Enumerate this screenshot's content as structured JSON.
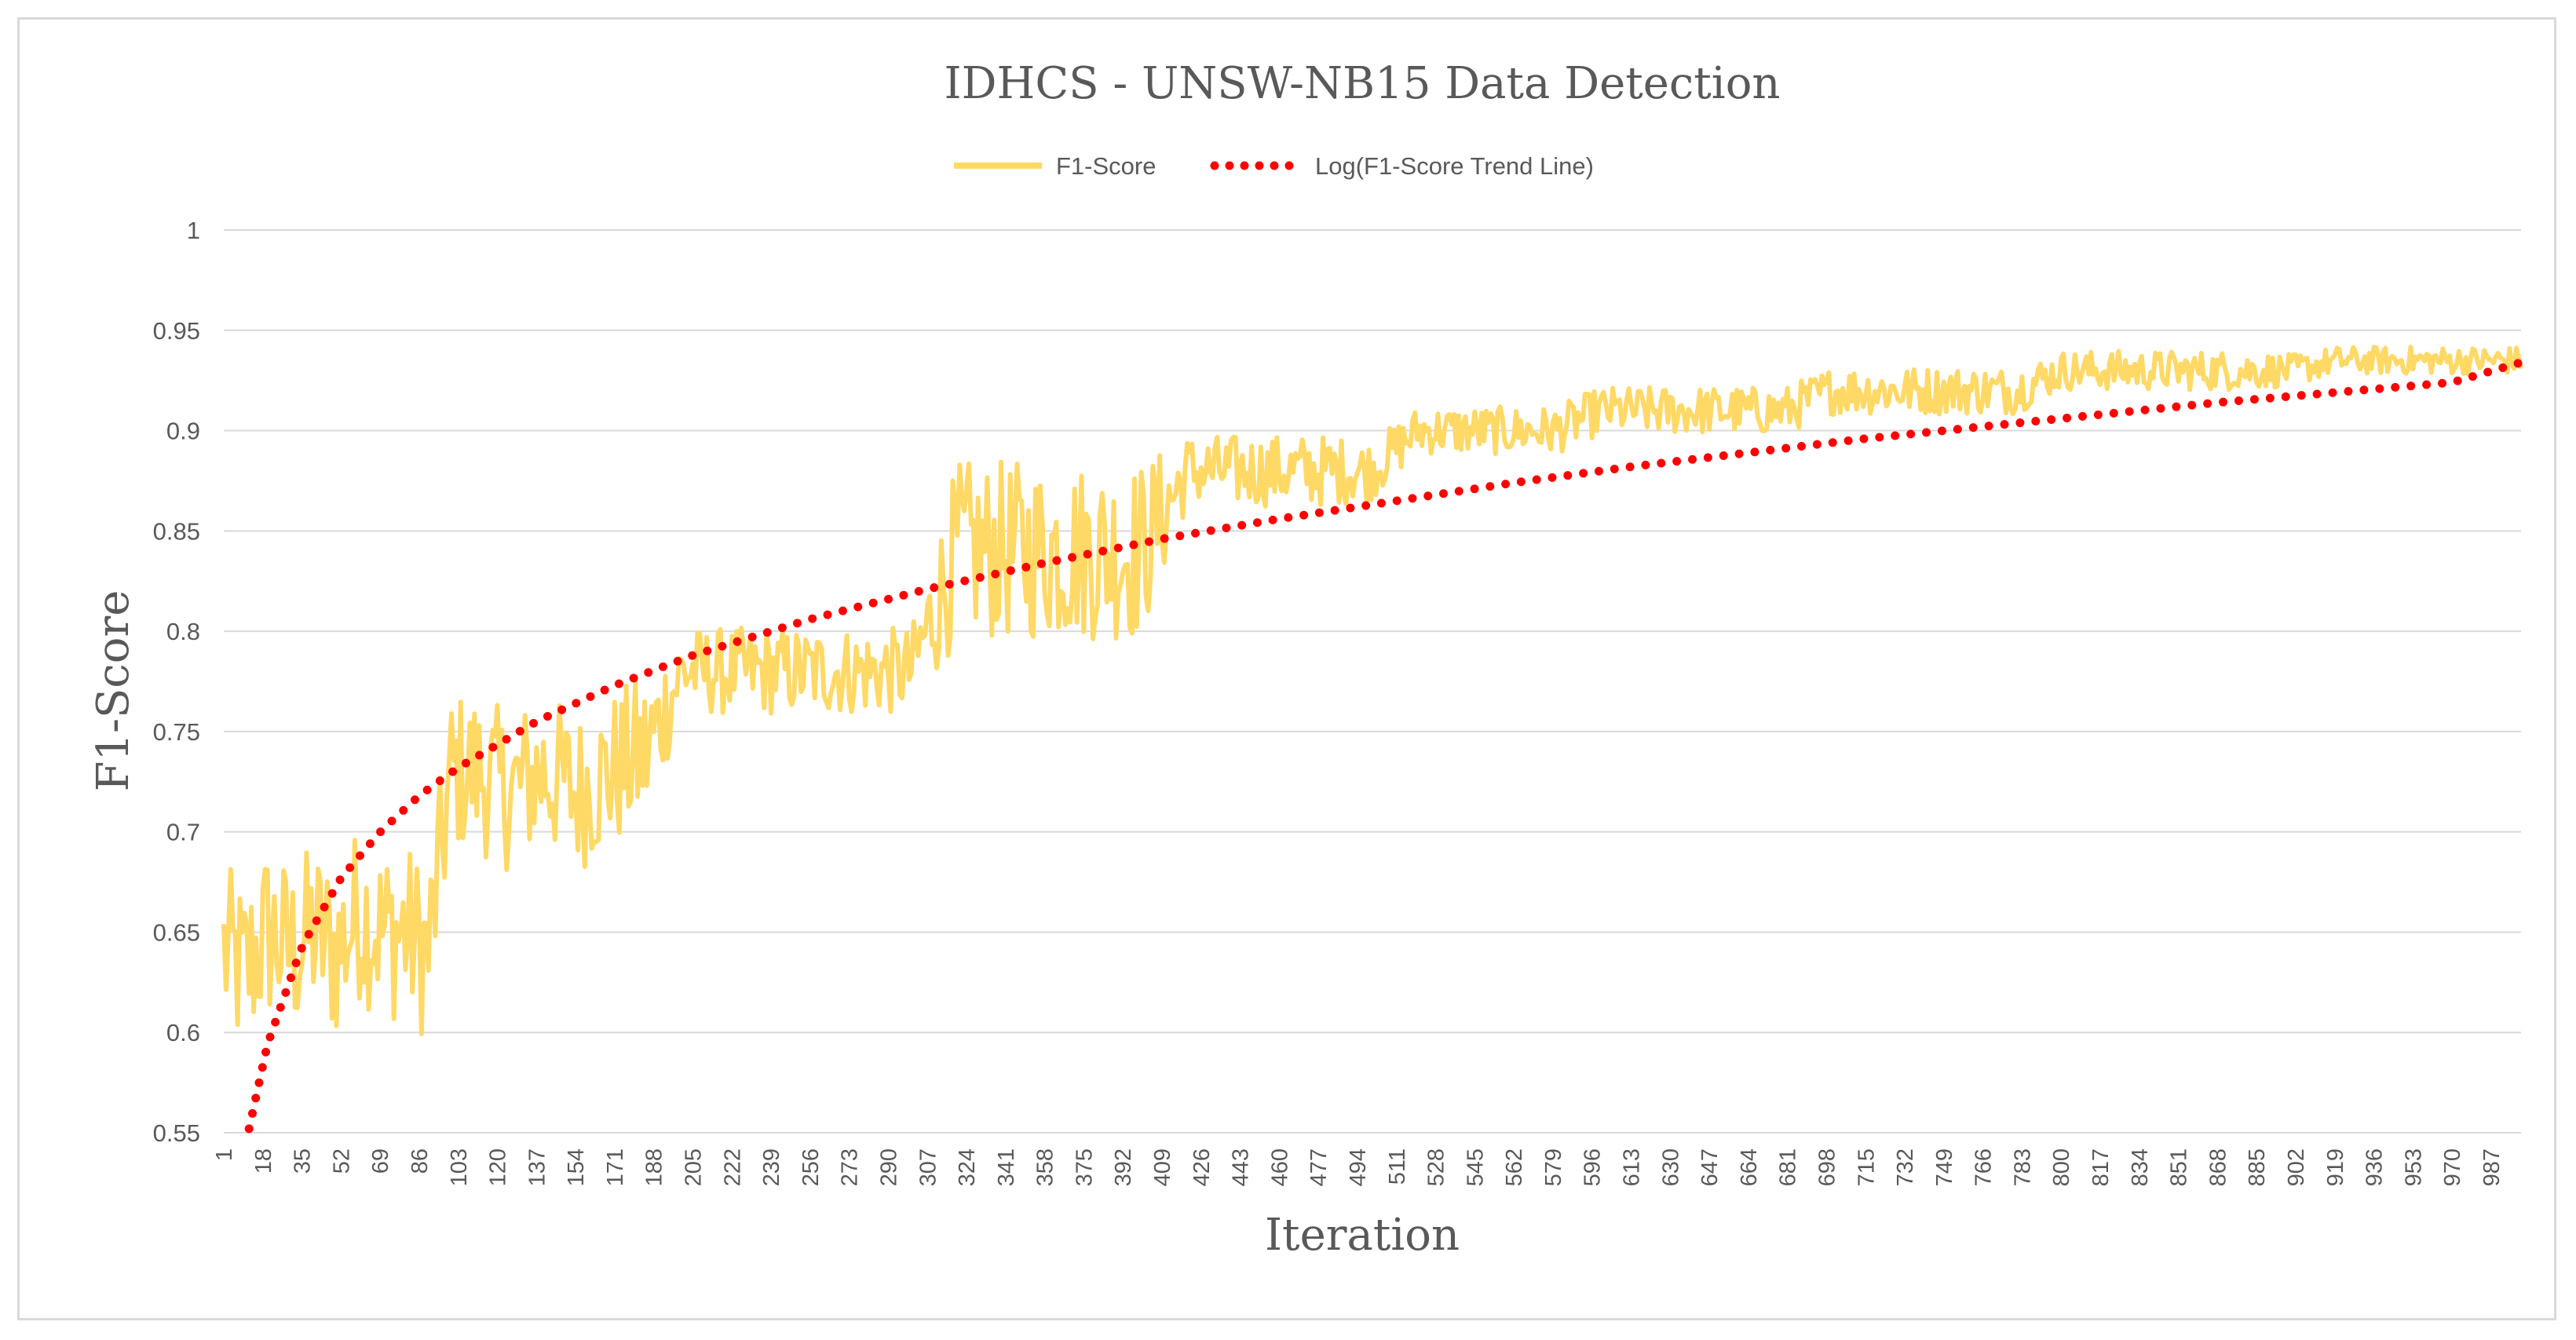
{
  "chart_data": {
    "type": "line",
    "title": "IDHCS - UNSW-NB15 Data Detection",
    "xlabel": "Iteration",
    "ylabel": "F1-Score",
    "ylim": [
      0.55,
      1
    ],
    "xlim": [
      1,
      1000
    ],
    "y_ticks": [
      "0.55",
      "0.6",
      "0.65",
      "0.7",
      "0.75",
      "0.8",
      "0.85",
      "0.9",
      "0.95",
      "1"
    ],
    "x_ticks": [
      "1",
      "18",
      "35",
      "52",
      "69",
      "86",
      "103",
      "120",
      "137",
      "154",
      "171",
      "188",
      "205",
      "222",
      "239",
      "256",
      "273",
      "290",
      "307",
      "324",
      "341",
      "358",
      "375",
      "392",
      "409",
      "426",
      "443",
      "460",
      "477",
      "494",
      "511",
      "528",
      "545",
      "562",
      "579",
      "596",
      "613",
      "630",
      "647",
      "664",
      "681",
      "698",
      "715",
      "732",
      "749",
      "766",
      "783",
      "800",
      "817",
      "834",
      "851",
      "868",
      "885",
      "902",
      "919",
      "936",
      "953",
      "970",
      "987"
    ],
    "grid": true,
    "legend_position": "top-center",
    "series": [
      {
        "name": "F1-Score",
        "style": "solid",
        "color": "#ffd966",
        "x": [
          1,
          10,
          20,
          30,
          40,
          50,
          60,
          70,
          80,
          90,
          100,
          110,
          125,
          140,
          155,
          170,
          185,
          200,
          220,
          240,
          260,
          280,
          300,
          320,
          340,
          360,
          380,
          400,
          420,
          440,
          460,
          480,
          500,
          520,
          540,
          560,
          580,
          600,
          620,
          640,
          660,
          680,
          700,
          720,
          740,
          760,
          780,
          800,
          820,
          840,
          860,
          880,
          900,
          920,
          940,
          960,
          980,
          1000
        ],
        "values": [
          0.64,
          0.63,
          0.65,
          0.64,
          0.65,
          0.64,
          0.66,
          0.65,
          0.65,
          0.64,
          0.73,
          0.73,
          0.72,
          0.73,
          0.72,
          0.73,
          0.74,
          0.78,
          0.78,
          0.78,
          0.78,
          0.78,
          0.78,
          0.84,
          0.84,
          0.84,
          0.84,
          0.84,
          0.88,
          0.88,
          0.88,
          0.88,
          0.88,
          0.9,
          0.9,
          0.9,
          0.9,
          0.91,
          0.91,
          0.91,
          0.91,
          0.91,
          0.92,
          0.92,
          0.92,
          0.92,
          0.92,
          0.93,
          0.93,
          0.93,
          0.93,
          0.93,
          0.93,
          0.935,
          0.935,
          0.935,
          0.935,
          0.935
        ],
        "noise_amplitude": [
          0.045,
          0.045,
          0.045,
          0.045,
          0.045,
          0.045,
          0.045,
          0.045,
          0.045,
          0.045,
          0.04,
          0.04,
          0.04,
          0.04,
          0.04,
          0.04,
          0.04,
          0.022,
          0.022,
          0.022,
          0.022,
          0.022,
          0.022,
          0.045,
          0.045,
          0.045,
          0.045,
          0.045,
          0.018,
          0.018,
          0.018,
          0.018,
          0.015,
          0.012,
          0.012,
          0.012,
          0.012,
          0.012,
          0.012,
          0.012,
          0.012,
          0.012,
          0.012,
          0.012,
          0.012,
          0.012,
          0.012,
          0.01,
          0.01,
          0.01,
          0.01,
          0.01,
          0.008,
          0.007,
          0.007,
          0.007,
          0.007,
          0.007
        ]
      },
      {
        "name": "Log(F1-Score Trend Line)",
        "style": "dotted",
        "color": "#ff0000",
        "x": [
          12,
          20,
          35,
          52,
          69,
          86,
          103,
          137,
          171,
          205,
          256,
          307,
          358,
          409,
          460,
          511,
          562,
          613,
          664,
          715,
          766,
          817,
          868,
          919,
          970,
          1000
        ],
        "values": [
          0.552,
          0.594,
          0.643,
          0.677,
          0.7,
          0.718,
          0.732,
          0.755,
          0.773,
          0.788,
          0.806,
          0.821,
          0.834,
          0.846,
          0.856,
          0.865,
          0.874,
          0.882,
          0.889,
          0.896,
          0.902,
          0.908,
          0.914,
          0.919,
          0.924,
          0.934
        ]
      }
    ]
  }
}
